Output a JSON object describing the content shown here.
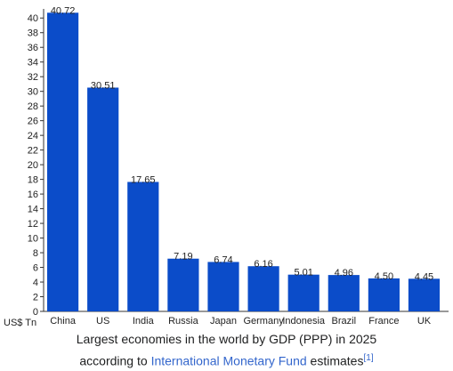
{
  "chart_data": {
    "type": "bar",
    "categories": [
      "China",
      "US",
      "India",
      "Russia",
      "Japan",
      "Germany",
      "Indonesia",
      "Brazil",
      "France",
      "UK"
    ],
    "values": [
      40.72,
      30.51,
      17.65,
      7.19,
      6.74,
      6.16,
      5.01,
      4.96,
      4.5,
      4.45
    ],
    "value_labels": [
      "40.72",
      "30.51",
      "17.65",
      "7.19",
      "6.74",
      "6.16",
      "5.01",
      "4.96",
      "4.50",
      "4.45"
    ],
    "y_ticks": [
      0,
      2,
      4,
      6,
      8,
      10,
      12,
      14,
      16,
      18,
      20,
      22,
      24,
      26,
      28,
      30,
      32,
      34,
      36,
      38,
      40
    ],
    "ylim": [
      0,
      41
    ],
    "ylabel": "US$ Tn",
    "xlabel": "",
    "title": "",
    "grid": false,
    "bar_color": "#0b4cc9"
  },
  "caption": {
    "line1": "Largest economies in the world by GDP (PPP) in 2025",
    "line2_prefix": "according to ",
    "link_text": "International Monetary Fund",
    "line2_suffix": " estimates",
    "ref": "[1]"
  }
}
